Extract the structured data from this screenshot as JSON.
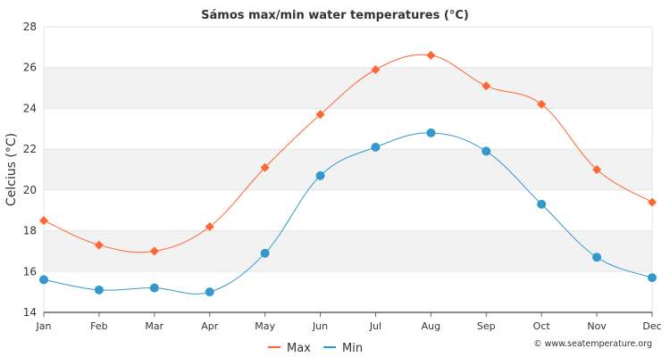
{
  "chart_data": {
    "type": "line",
    "title": "Sámos max/min water temperatures (°C)",
    "ylabel": "Celcius (°C)",
    "xlabel": "",
    "categories": [
      "Jan",
      "Feb",
      "Mar",
      "Apr",
      "May",
      "Jun",
      "Jul",
      "Aug",
      "Sep",
      "Oct",
      "Nov",
      "Dec"
    ],
    "ylim": [
      14,
      28
    ],
    "yticks": [
      "14",
      "16",
      "18",
      "20",
      "22",
      "24",
      "26",
      "28"
    ],
    "grid": "horizontal alternating bands",
    "legend_position": "bottom-center",
    "series": [
      {
        "name": "Max",
        "color": "#ff6633",
        "marker": "diamond",
        "values": [
          18.5,
          17.3,
          17.0,
          18.2,
          21.1,
          23.7,
          25.9,
          26.6,
          25.1,
          24.2,
          21.0,
          19.4
        ]
      },
      {
        "name": "Min",
        "color": "#3399cc",
        "marker": "circle",
        "values": [
          15.6,
          15.1,
          15.2,
          15.0,
          16.9,
          20.7,
          22.1,
          22.8,
          21.9,
          19.3,
          16.7,
          15.7
        ]
      }
    ]
  },
  "credit": "© www.seatemperature.org"
}
